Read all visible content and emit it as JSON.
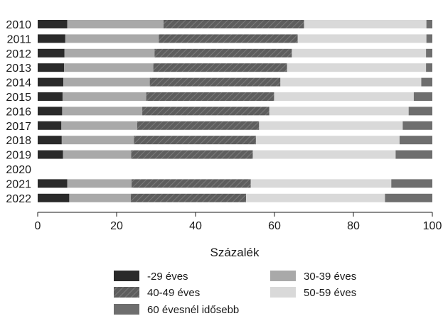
{
  "chart_data": {
    "type": "bar",
    "orientation": "horizontal",
    "stacked": true,
    "categories": [
      "2010",
      "2011",
      "2012",
      "2013",
      "2014",
      "2015",
      "2016",
      "2017",
      "2018",
      "2019",
      "2020",
      "2021",
      "2022"
    ],
    "xlabel": "Százalék",
    "xlim": [
      0,
      100
    ],
    "xticks": [
      "0",
      "20",
      "40",
      "60",
      "80",
      "100"
    ],
    "grid": false,
    "legend_position": "bottom",
    "series": [
      {
        "name": "-29 éves",
        "color": "#2a2a2a",
        "values": [
          7.5,
          7.0,
          6.8,
          6.7,
          6.5,
          6.3,
          6.2,
          6.0,
          6.1,
          6.4,
          null,
          7.5,
          8.0
        ]
      },
      {
        "name": "30-39 éves",
        "color": "#a9a9a9",
        "values": [
          24.4,
          23.7,
          22.8,
          22.6,
          21.9,
          21.2,
          20.3,
          19.2,
          18.3,
          17.3,
          null,
          16.3,
          15.6
        ]
      },
      {
        "name": "40-49 éves",
        "color": "#5e5e5e",
        "pattern": "hatch",
        "values": [
          35.6,
          35.2,
          34.8,
          33.9,
          33.1,
          32.4,
          32.2,
          30.9,
          30.9,
          30.8,
          null,
          30.2,
          29.2
        ]
      },
      {
        "name": "50-59 éves",
        "color": "#d9d9d9",
        "values": [
          31.0,
          32.6,
          34.0,
          35.2,
          35.7,
          35.4,
          35.3,
          36.4,
          36.4,
          36.2,
          null,
          35.6,
          35.2
        ]
      },
      {
        "name": "60 évesnél idősebb",
        "color": "#6e6e6e",
        "values": [
          1.5,
          1.5,
          1.6,
          1.6,
          2.8,
          4.7,
          6.0,
          7.5,
          8.3,
          9.3,
          null,
          10.4,
          12.0
        ]
      }
    ]
  }
}
